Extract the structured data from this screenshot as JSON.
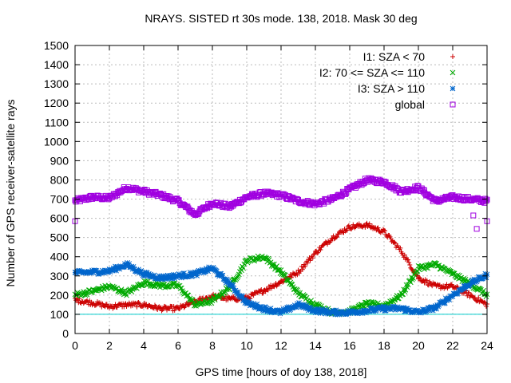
{
  "chart_data": {
    "type": "scatter",
    "title": "NRAYS. SISTED rt 30s mode. 138, 2018. Mask 30 deg",
    "xlabel": "GPS time [hours of doy 138, 2018]",
    "ylabel": "Number of GPS receiver-satellite rays",
    "xlim": [
      0,
      24
    ],
    "ylim": [
      0,
      1500
    ],
    "x_ticks": [
      "0",
      "2",
      "4",
      "6",
      "8",
      "10",
      "12",
      "14",
      "16",
      "18",
      "20",
      "22",
      "24"
    ],
    "y_ticks": [
      "0",
      "100",
      "200",
      "300",
      "400",
      "500",
      "600",
      "700",
      "800",
      "900",
      "1000",
      "1100",
      "1200",
      "1300",
      "1400",
      "1500"
    ],
    "grid": true,
    "legend_position": "top-right",
    "reference_line": {
      "y": 100,
      "color": "#00cccc"
    },
    "series": [
      {
        "name": "I1: SZA < 70",
        "marker": "+",
        "color": "#cc0000",
        "x": [
          0,
          1,
          2,
          3,
          4,
          5,
          6,
          7,
          8,
          9,
          10,
          11,
          12,
          13,
          14,
          15,
          16,
          17,
          18,
          19,
          20,
          21,
          22,
          23,
          24
        ],
        "y": [
          175,
          160,
          140,
          150,
          150,
          130,
          130,
          165,
          195,
          180,
          185,
          225,
          270,
          320,
          420,
          500,
          555,
          565,
          530,
          430,
          290,
          245,
          245,
          200,
          150
        ]
      },
      {
        "name": "I2: 70 <= SZA <= 110",
        "marker": "x",
        "color": "#00aa00",
        "x": [
          0,
          1,
          2,
          3,
          4,
          5,
          6,
          7,
          8,
          9,
          10,
          11,
          12,
          13,
          14,
          15,
          16,
          17,
          18,
          19,
          20,
          21,
          22,
          23,
          24
        ],
        "y": [
          200,
          220,
          245,
          210,
          265,
          250,
          250,
          150,
          170,
          240,
          380,
          400,
          320,
          210,
          150,
          110,
          115,
          155,
          145,
          200,
          340,
          360,
          310,
          260,
          200
        ]
      },
      {
        "name": "I3: SZA > 110",
        "marker": "*",
        "color": "#0066cc",
        "x": [
          0,
          1,
          2,
          3,
          4,
          5,
          6,
          7,
          8,
          9,
          10,
          11,
          12,
          13,
          14,
          15,
          16,
          17,
          18,
          19,
          20,
          21,
          22,
          23,
          24
        ],
        "y": [
          315,
          320,
          325,
          360,
          310,
          290,
          300,
          310,
          340,
          260,
          160,
          130,
          110,
          150,
          120,
          110,
          110,
          120,
          130,
          130,
          110,
          135,
          200,
          260,
          305
        ]
      },
      {
        "name": "global",
        "marker": "square",
        "color": "#a000e0",
        "x": [
          0,
          1,
          2,
          3,
          4,
          5,
          6,
          7,
          8,
          9,
          10,
          11,
          12,
          13,
          14,
          15,
          16,
          17,
          18,
          19,
          20,
          21,
          22,
          23,
          24
        ],
        "y": [
          690,
          710,
          705,
          760,
          740,
          720,
          690,
          620,
          680,
          660,
          710,
          730,
          720,
          690,
          675,
          700,
          750,
          800,
          790,
          740,
          760,
          690,
          710,
          700,
          690
        ]
      }
    ],
    "outliers": [
      {
        "series": "global",
        "x": 0,
        "y": 585
      },
      {
        "series": "global",
        "x": 23.2,
        "y": 615
      },
      {
        "series": "global",
        "x": 24,
        "y": 585
      },
      {
        "series": "global",
        "x": 23.4,
        "y": 545
      }
    ]
  }
}
